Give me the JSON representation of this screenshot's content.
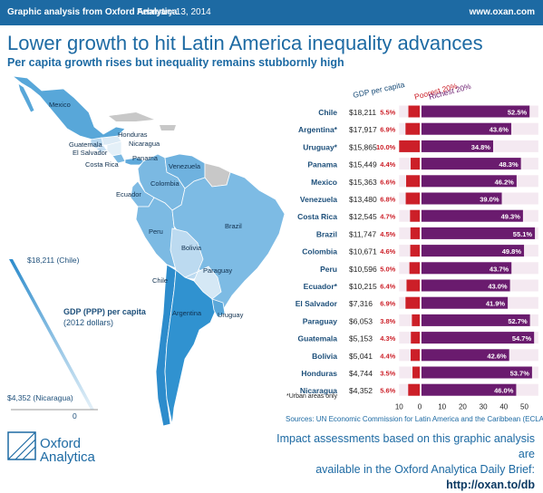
{
  "header": {
    "left_label": "Graphic analysis from Oxford Analytica",
    "date": "February 13, 2014",
    "website": "www.oxan.com"
  },
  "title": "Lower growth to hit Latin America inequality advances",
  "subtitle": "Per capita growth rises but inequality remains stubbornly high",
  "map": {
    "country_labels": [
      "Mexico",
      "Honduras",
      "Guatemala",
      "El Salvador",
      "Nicaragua",
      "Panama",
      "Costa Rica",
      "Venezuela",
      "Colombia",
      "Ecuador",
      "Brazil",
      "Peru",
      "Bolivia",
      "Paraguay",
      "Chile",
      "Argentina",
      "Uruguay"
    ],
    "legend": {
      "max_label": "$18,211 (Chile)",
      "min_label": "$4,352 (Nicaragua)",
      "zero_label": "0",
      "title_line1": "GDP (PPP) per capita",
      "title_line2": "(2012 dollars)",
      "colors": {
        "dark": "#2d8ccc",
        "light": "#dcebf6",
        "no_data": "#c8c8c8"
      }
    }
  },
  "chart_data": {
    "type": "bar",
    "column_headers": {
      "gdp": "GDP per capita",
      "poorest": "Poorest 20%",
      "richest": "Richest 20%"
    },
    "categories": [
      "Chile",
      "Argentina*",
      "Uruguay*",
      "Panama",
      "Mexico",
      "Venezuela",
      "Costa Rica",
      "Brazil",
      "Colombia",
      "Peru",
      "Ecuador*",
      "El Salvador",
      "Paraguay",
      "Guatemala",
      "Bolivia",
      "Honduras",
      "Nicaragua"
    ],
    "gdp_per_capita": [
      "$18,211",
      "$17,917",
      "$15,865",
      "$15,449",
      "$15,363",
      "$13,480",
      "$12,545",
      "$11,747",
      "$10,671",
      "$10,596",
      "$10,215",
      "$7,316",
      "$6,053",
      "$5,153",
      "$5,041",
      "$4,744",
      "$4,352"
    ],
    "series": [
      {
        "name": "Poorest 20%",
        "color": "#cc1f28",
        "values": [
          5.5,
          6.9,
          10.0,
          4.4,
          6.6,
          6.8,
          4.7,
          4.5,
          4.6,
          5.0,
          6.4,
          6.9,
          3.8,
          4.3,
          4.4,
          3.5,
          5.6
        ],
        "labels": [
          "5.5%",
          "6.9%",
          "10.0%",
          "4.4%",
          "6.6%",
          "6.8%",
          "4.7%",
          "4.5%",
          "4.6%",
          "5.0%",
          "6.4%",
          "6.9%",
          "3.8%",
          "4.3%",
          "4.4%",
          "3.5%",
          "5.6%"
        ]
      },
      {
        "name": "Richest 20%",
        "color": "#6a1b6e",
        "values": [
          52.5,
          43.6,
          34.8,
          48.3,
          46.2,
          39.0,
          49.3,
          55.1,
          49.8,
          43.7,
          43.0,
          41.9,
          52.7,
          54.7,
          42.6,
          53.7,
          46.0
        ],
        "labels": [
          "52.5%",
          "43.6%",
          "34.8%",
          "48.3%",
          "46.2%",
          "39.0%",
          "49.3%",
          "55.1%",
          "49.8%",
          "43.7%",
          "43.0%",
          "41.9%",
          "52.7%",
          "54.7%",
          "42.6%",
          "53.7%",
          "46.0%"
        ]
      }
    ],
    "x_ticks": [
      "10",
      "0",
      "10",
      "20",
      "30",
      "40",
      "50"
    ],
    "bar_background": "#f4e9f1",
    "note": "*Urban areas only"
  },
  "source": "Sources: UN Economic Commission for Latin America and the Caribbean (ECLAC), IMF",
  "impact": {
    "line1": "Impact assessments based on this graphic analysis are",
    "line2": "available in the Oxford Analytica Daily Brief:",
    "link": "http://oxan.to/db"
  },
  "logo": {
    "line1": "Oxford",
    "line2": "Analytica"
  }
}
